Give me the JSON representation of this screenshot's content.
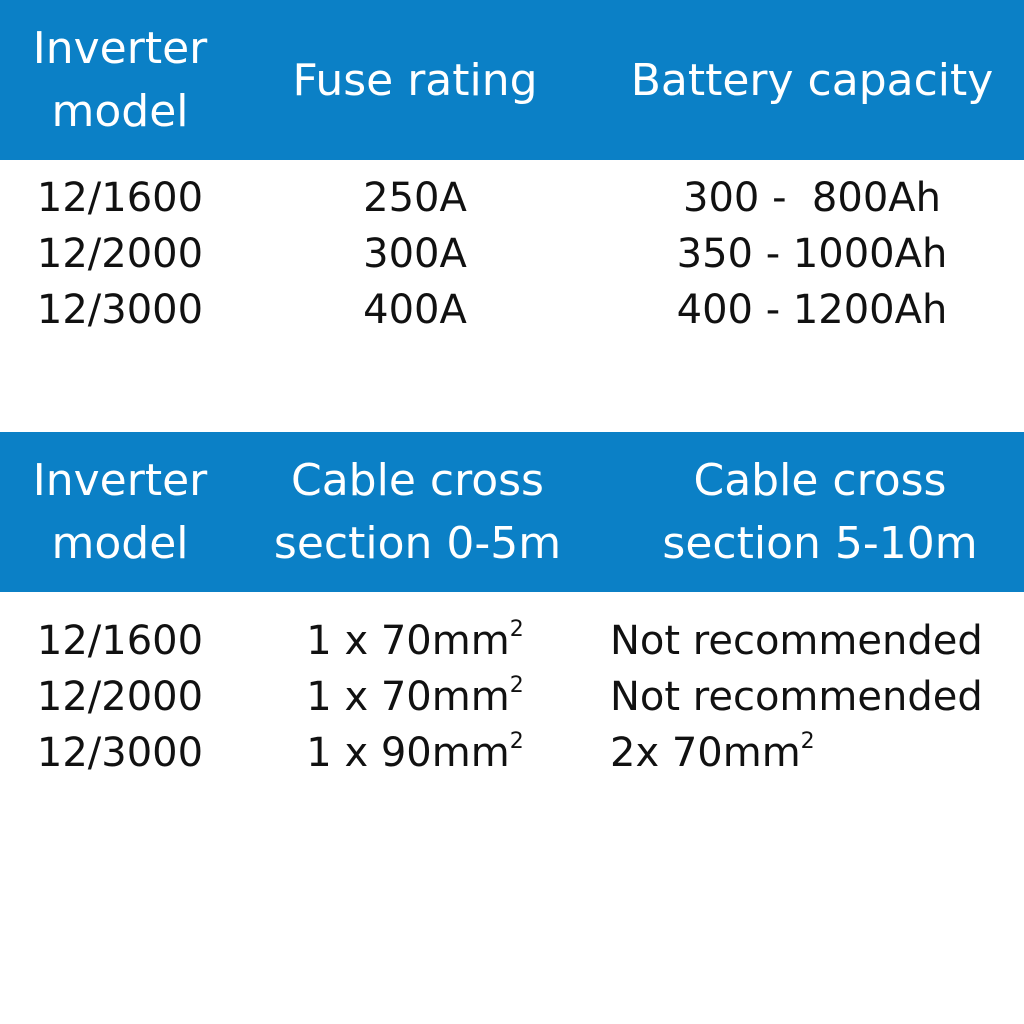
{
  "colors": {
    "header_bg": "#0b80c6",
    "header_text": "#ffffff",
    "body_text": "#111111"
  },
  "table1": {
    "headers": [
      "Inverter\nmodel",
      "Fuse rating",
      "Battery capacity"
    ],
    "rows": [
      [
        "12/1600",
        "250A",
        "300 -  800Ah"
      ],
      [
        "12/2000",
        "300A",
        "350 - 1000Ah"
      ],
      [
        "12/3000",
        "400A",
        "400 - 1200Ah"
      ]
    ]
  },
  "table2": {
    "headers": [
      "Inverter\nmodel",
      "Cable cross\nsection 0-5m",
      "Cable cross\nsection 5-10m"
    ],
    "unit_superscript": "2",
    "rows": [
      {
        "model": "12/1600",
        "short": "1 x 70mm",
        "long": "Not recommended",
        "long_has_unit": false
      },
      {
        "model": "12/2000",
        "short": "1 x 70mm",
        "long": "Not recommended",
        "long_has_unit": false
      },
      {
        "model": "12/3000",
        "short": "1 x 90mm",
        "long": "2x 70mm",
        "long_has_unit": true
      }
    ]
  }
}
